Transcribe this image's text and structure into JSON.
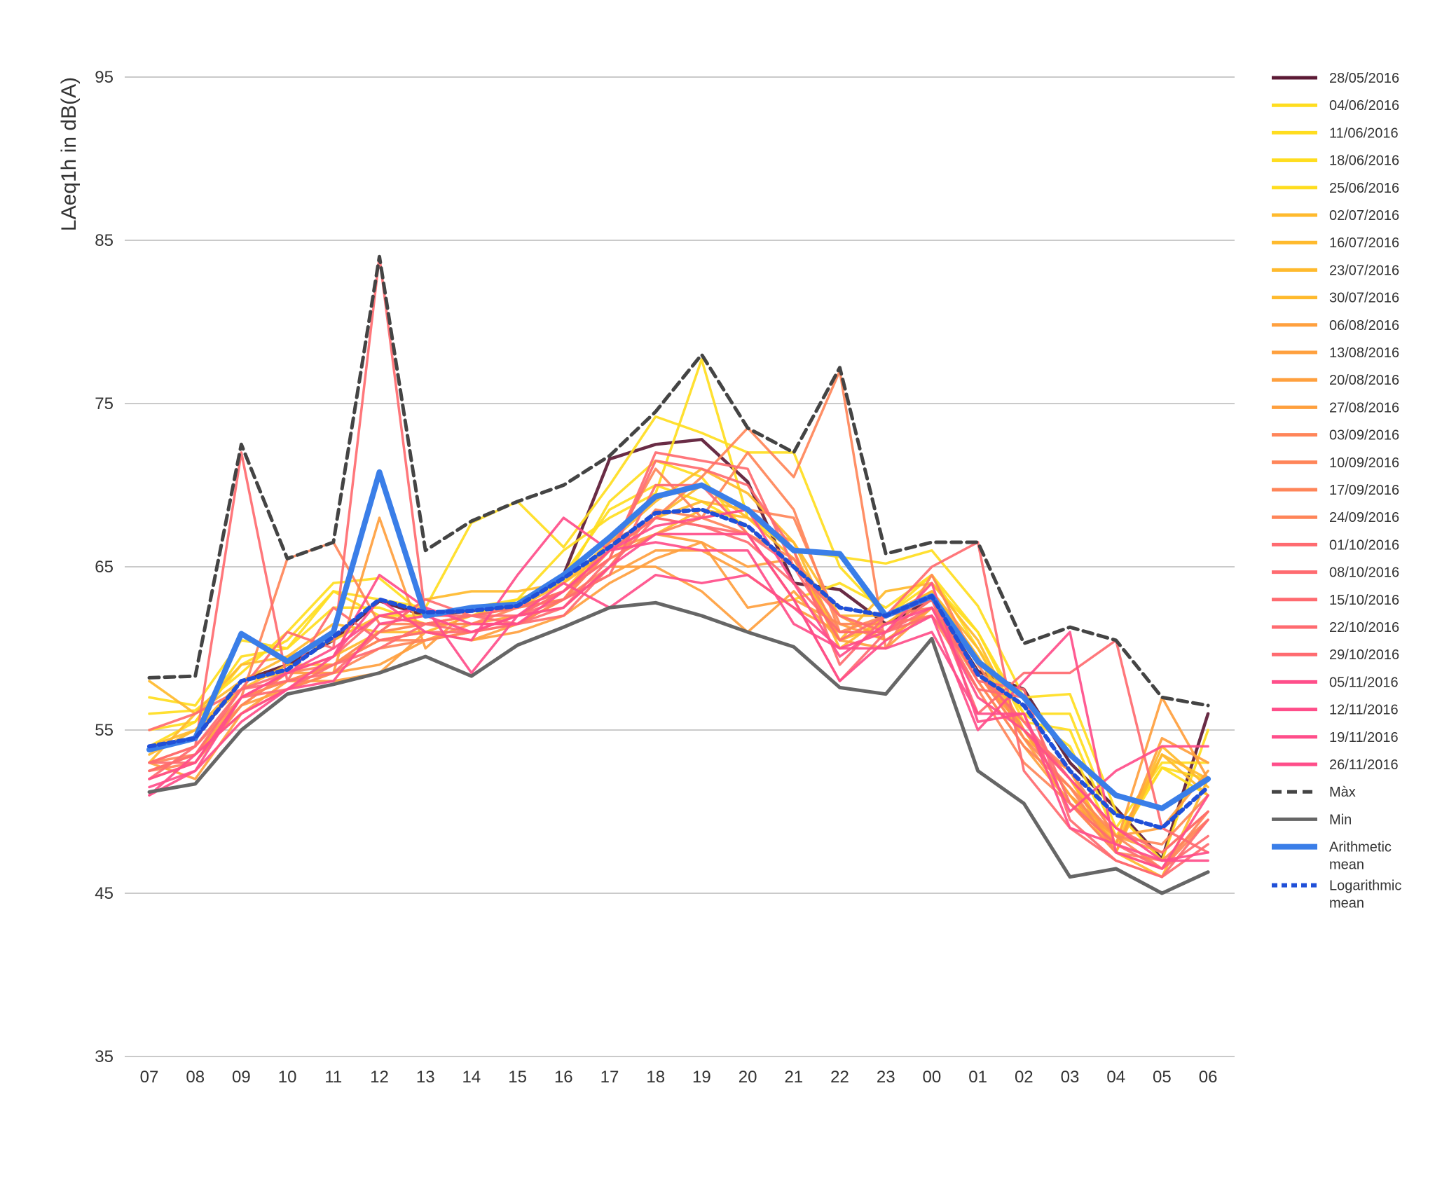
{
  "chart_data": {
    "type": "line",
    "title": "",
    "xlabel": "",
    "ylabel": "LAeq1h in  dB(A)",
    "ylim": [
      35,
      95
    ],
    "yticks": [
      "95",
      "85",
      "75",
      "65",
      "55",
      "45",
      "35"
    ],
    "categories": [
      "07",
      "08",
      "09",
      "10",
      "11",
      "12",
      "13",
      "14",
      "15",
      "16",
      "17",
      "18",
      "19",
      "20",
      "21",
      "22",
      "23",
      "00",
      "01",
      "02",
      "03",
      "04",
      "05",
      "06"
    ],
    "grid": "horizontal",
    "legend_position": "right",
    "series": [
      {
        "name": "28/05/2016",
        "color": "#5c1a35",
        "style": "solid",
        "values": [
          54.0,
          54.5,
          58.0,
          59.0,
          60.5,
          62.9,
          62.0,
          62.3,
          62.6,
          64.5,
          71.6,
          72.5,
          72.8,
          70.2,
          64.0,
          63.6,
          61.5,
          63.0,
          58.6,
          57.5,
          53.0,
          50.2,
          47.1,
          56.0
        ]
      },
      {
        "name": "04/06/2016",
        "color": "#ffdd1f",
        "style": "solid",
        "values": [
          56.0,
          56.2,
          58.5,
          61.0,
          64.0,
          64.3,
          62.0,
          62.5,
          63.0,
          66.0,
          68.0,
          69.5,
          77.7,
          68.0,
          66.0,
          65.6,
          65.2,
          66.0,
          62.6,
          57.0,
          57.2,
          50.0,
          47.0,
          55.0
        ]
      },
      {
        "name": "11/06/2016",
        "color": "#ffdd1f",
        "style": "solid",
        "values": [
          54.0,
          55.5,
          59.0,
          60.5,
          63.5,
          63.0,
          62.5,
          67.7,
          69.0,
          66.2,
          70.0,
          74.2,
          73.2,
          72.0,
          72.0,
          65.0,
          62.0,
          64.5,
          61.0,
          56.0,
          56.0,
          49.0,
          53.0,
          53.0
        ]
      },
      {
        "name": "18/06/2016",
        "color": "#ffdd1f",
        "style": "solid",
        "values": [
          57.0,
          56.5,
          60.5,
          60.0,
          62.5,
          62.5,
          61.5,
          62.0,
          63.0,
          64.0,
          69.0,
          71.5,
          70.5,
          67.0,
          63.0,
          64.0,
          62.5,
          64.5,
          60.0,
          56.0,
          54.0,
          48.0,
          52.7,
          52.0
        ]
      },
      {
        "name": "25/06/2016",
        "color": "#ffdd1f",
        "style": "solid",
        "values": [
          55.0,
          55.5,
          59.5,
          60.0,
          63.5,
          62.0,
          62.0,
          62.5,
          62.5,
          64.5,
          68.5,
          70.0,
          69.0,
          67.5,
          65.0,
          62.5,
          62.0,
          64.0,
          61.0,
          55.5,
          55.0,
          48.5,
          52.7,
          51.0
        ]
      },
      {
        "name": "02/07/2016",
        "color": "#ffba2d",
        "style": "solid",
        "values": [
          58.0,
          56.0,
          59.0,
          59.5,
          61.5,
          61.0,
          63.0,
          63.5,
          63.5,
          64.0,
          66.5,
          69.0,
          71.0,
          69.5,
          66.5,
          60.5,
          63.5,
          64.0,
          60.5,
          55.0,
          52.0,
          47.5,
          46.0,
          52.0
        ]
      },
      {
        "name": "16/07/2016",
        "color": "#ffba2d",
        "style": "solid",
        "values": [
          53.0,
          56.0,
          58.0,
          59.5,
          60.5,
          62.0,
          61.5,
          62.0,
          62.5,
          64.0,
          66.0,
          68.0,
          70.0,
          68.0,
          66.5,
          62.0,
          62.0,
          63.5,
          59.5,
          55.0,
          52.0,
          48.0,
          53.5,
          52.0
        ]
      },
      {
        "name": "23/07/2016",
        "color": "#ffba2d",
        "style": "solid",
        "values": [
          53.5,
          55.0,
          58.0,
          58.5,
          59.5,
          61.0,
          61.5,
          62.0,
          62.5,
          63.5,
          66.5,
          68.0,
          69.0,
          68.5,
          66.0,
          60.0,
          62.0,
          63.5,
          59.5,
          54.5,
          52.5,
          47.5,
          54.0,
          51.5
        ]
      },
      {
        "name": "30/07/2016",
        "color": "#ffba2d",
        "style": "solid",
        "values": [
          54.0,
          55.0,
          57.5,
          59.0,
          59.0,
          61.0,
          61.0,
          62.0,
          62.5,
          63.5,
          65.5,
          67.0,
          68.5,
          68.0,
          65.5,
          60.5,
          61.5,
          63.5,
          60.0,
          55.0,
          51.0,
          47.5,
          53.5,
          51.0
        ]
      },
      {
        "name": "06/08/2016",
        "color": "#ffa03e",
        "style": "solid",
        "values": [
          52.5,
          53.5,
          56.5,
          58.5,
          58.5,
          59.0,
          60.5,
          61.5,
          62.0,
          62.5,
          65.0,
          65.0,
          63.5,
          61.0,
          63.5,
          60.5,
          60.0,
          62.5,
          58.5,
          55.0,
          51.0,
          48.0,
          57.0,
          52.0
        ]
      },
      {
        "name": "13/08/2016",
        "color": "#ffa03e",
        "style": "solid",
        "values": [
          53.0,
          52.0,
          56.0,
          58.0,
          58.0,
          58.5,
          61.0,
          60.5,
          61.0,
          62.0,
          64.0,
          65.5,
          66.5,
          62.5,
          63.0,
          61.5,
          60.5,
          62.5,
          58.0,
          54.0,
          50.5,
          47.5,
          54.5,
          53.0
        ]
      },
      {
        "name": "20/08/2016",
        "color": "#ffa03e",
        "style": "solid",
        "values": [
          52.0,
          53.0,
          56.5,
          57.5,
          58.5,
          68.0,
          60.0,
          62.5,
          62.5,
          63.0,
          64.5,
          66.0,
          66.0,
          64.5,
          62.5,
          61.0,
          61.0,
          63.0,
          58.5,
          54.5,
          50.5,
          48.5,
          49.0,
          52.5
        ]
      },
      {
        "name": "27/08/2016",
        "color": "#ffa03e",
        "style": "solid",
        "values": [
          52.5,
          53.5,
          57.0,
          58.0,
          59.0,
          60.5,
          61.0,
          60.5,
          61.5,
          63.0,
          66.0,
          67.0,
          66.5,
          65.0,
          65.5,
          62.0,
          60.5,
          62.5,
          58.5,
          55.0,
          51.0,
          48.5,
          47.5,
          50.0
        ]
      },
      {
        "name": "03/09/2016",
        "color": "#ff8559",
        "style": "solid",
        "values": [
          53.0,
          54.0,
          57.0,
          65.5,
          66.5,
          61.5,
          61.5,
          61.5,
          61.5,
          63.0,
          66.5,
          68.0,
          70.5,
          73.5,
          70.5,
          77.0,
          60.0,
          64.5,
          59.0,
          55.0,
          52.5,
          48.5,
          46.5,
          49.5
        ]
      },
      {
        "name": "10/09/2016",
        "color": "#ff8559",
        "style": "solid",
        "values": [
          52.0,
          53.0,
          57.0,
          58.0,
          59.0,
          60.5,
          60.5,
          61.0,
          61.5,
          63.0,
          66.0,
          71.0,
          68.0,
          72.0,
          68.5,
          61.0,
          61.0,
          63.0,
          58.0,
          54.0,
          51.5,
          47.5,
          46.5,
          50.0
        ]
      },
      {
        "name": "17/09/2016",
        "color": "#ff8559",
        "style": "solid",
        "values": [
          53.0,
          53.5,
          56.0,
          57.5,
          58.5,
          60.0,
          60.5,
          61.0,
          62.0,
          63.5,
          65.5,
          67.0,
          68.0,
          67.0,
          65.5,
          61.0,
          62.0,
          62.5,
          58.5,
          54.5,
          51.5,
          48.5,
          48.0,
          51.0
        ]
      },
      {
        "name": "24/09/2016",
        "color": "#ff8559",
        "style": "solid",
        "values": [
          52.5,
          53.0,
          56.5,
          58.5,
          59.0,
          61.0,
          61.5,
          61.5,
          62.5,
          63.0,
          65.0,
          68.5,
          68.0,
          68.5,
          68.0,
          61.5,
          61.5,
          62.0,
          57.5,
          53.0,
          50.5,
          47.5,
          47.0,
          49.5
        ]
      },
      {
        "name": "01/10/2016",
        "color": "#ff6b70",
        "style": "solid",
        "values": [
          55.0,
          56.0,
          57.5,
          61.0,
          60.0,
          84.0,
          62.0,
          62.0,
          62.5,
          63.5,
          66.0,
          68.0,
          67.5,
          67.0,
          65.0,
          62.0,
          61.0,
          62.0,
          58.5,
          55.5,
          52.0,
          49.0,
          47.5,
          50.0
        ]
      },
      {
        "name": "08/10/2016",
        "color": "#ff6b70",
        "style": "solid",
        "values": [
          52.0,
          54.0,
          72.0,
          58.0,
          62.5,
          60.5,
          61.0,
          61.0,
          61.5,
          62.5,
          65.5,
          71.5,
          71.0,
          70.0,
          66.0,
          59.0,
          62.0,
          65.0,
          66.5,
          52.5,
          49.0,
          47.0,
          46.0,
          48.0
        ]
      },
      {
        "name": "15/10/2016",
        "color": "#ff6b70",
        "style": "solid",
        "values": [
          53.0,
          54.0,
          57.5,
          58.0,
          58.5,
          61.0,
          63.0,
          62.0,
          61.5,
          62.0,
          65.0,
          68.0,
          67.5,
          66.5,
          64.0,
          61.0,
          61.0,
          63.0,
          56.0,
          58.5,
          58.5,
          60.5,
          49.0,
          47.5
        ]
      },
      {
        "name": "22/10/2016",
        "color": "#ff6b70",
        "style": "solid",
        "values": [
          52.5,
          53.5,
          57.5,
          58.5,
          59.5,
          62.0,
          61.5,
          62.0,
          62.0,
          63.5,
          65.5,
          72.0,
          71.5,
          71.0,
          65.0,
          60.5,
          62.0,
          63.0,
          58.0,
          57.5,
          49.5,
          47.0,
          46.0,
          49.5
        ]
      },
      {
        "name": "29/10/2016",
        "color": "#ff6b70",
        "style": "solid",
        "values": [
          53.0,
          53.0,
          57.0,
          57.5,
          59.0,
          60.0,
          61.5,
          61.0,
          62.0,
          63.0,
          64.5,
          70.0,
          70.0,
          67.0,
          63.0,
          58.0,
          61.0,
          62.5,
          57.5,
          57.0,
          50.5,
          48.0,
          46.5,
          48.5
        ]
      },
      {
        "name": "05/11/2016",
        "color": "#ff4e8a",
        "style": "solid",
        "values": [
          51.0,
          53.5,
          56.0,
          57.5,
          58.0,
          61.5,
          62.0,
          61.0,
          62.0,
          62.5,
          65.0,
          67.0,
          67.0,
          67.0,
          63.0,
          58.0,
          60.5,
          62.0,
          55.0,
          58.0,
          61.0,
          47.5,
          46.5,
          51.0
        ]
      },
      {
        "name": "12/11/2016",
        "color": "#ff4e8a",
        "style": "solid",
        "values": [
          51.5,
          52.5,
          57.0,
          58.5,
          59.5,
          64.5,
          62.5,
          58.5,
          62.0,
          64.0,
          62.5,
          64.5,
          64.0,
          64.5,
          62.5,
          60.0,
          60.0,
          61.0,
          56.0,
          56.0,
          49.0,
          48.0,
          47.0,
          47.5
        ]
      },
      {
        "name": "19/11/2016",
        "color": "#ff4e8a",
        "style": "solid",
        "values": [
          52.0,
          53.0,
          57.0,
          58.5,
          60.0,
          62.0,
          62.5,
          61.5,
          61.5,
          63.5,
          66.0,
          67.5,
          68.0,
          68.5,
          64.0,
          59.5,
          61.5,
          62.5,
          57.0,
          55.0,
          52.0,
          49.0,
          47.0,
          47.0
        ]
      },
      {
        "name": "26/11/2016",
        "color": "#ff4e8a",
        "style": "solid",
        "values": [
          51.0,
          52.5,
          55.5,
          57.5,
          59.5,
          63.0,
          61.0,
          60.5,
          64.5,
          68.0,
          66.0,
          66.5,
          66.0,
          66.0,
          61.5,
          60.0,
          61.0,
          64.0,
          55.5,
          56.0,
          50.0,
          52.5,
          54.0,
          54.0
        ]
      },
      {
        "name": "Màx",
        "color": "#444444",
        "style": "dashed",
        "values": [
          58.2,
          58.3,
          72.5,
          65.5,
          66.5,
          84.0,
          66.0,
          67.8,
          69.0,
          70.0,
          71.8,
          74.5,
          78.0,
          73.5,
          72.0,
          77.2,
          65.8,
          66.5,
          66.5,
          60.3,
          61.3,
          60.5,
          57.0,
          56.5
        ]
      },
      {
        "name": "Min",
        "color": "#666666",
        "style": "solid",
        "values": [
          51.2,
          51.7,
          55.0,
          57.2,
          57.8,
          58.5,
          59.5,
          58.3,
          60.2,
          61.3,
          62.5,
          62.8,
          62.0,
          61.0,
          60.1,
          57.6,
          57.2,
          60.6,
          52.5,
          50.5,
          46.0,
          46.5,
          45.0,
          46.3
        ]
      },
      {
        "name": "Arithmetic mean",
        "color": "#3a7ee8",
        "style": "solid",
        "values": [
          53.8,
          54.5,
          60.9,
          59.2,
          61.0,
          70.8,
          62.0,
          62.5,
          62.7,
          64.5,
          66.8,
          69.3,
          70.0,
          68.5,
          66.0,
          65.8,
          62.0,
          63.2,
          59.2,
          57.0,
          53.5,
          51.0,
          50.2,
          52.0
        ]
      },
      {
        "name": "Logarithmic mean",
        "color": "#2050d8",
        "style": "dotted",
        "values": [
          54.0,
          54.5,
          58.0,
          58.7,
          60.7,
          63.0,
          62.2,
          62.3,
          62.6,
          64.3,
          66.2,
          68.3,
          68.5,
          67.5,
          65.0,
          62.5,
          62.0,
          63.2,
          58.4,
          56.5,
          52.5,
          49.8,
          49.0,
          51.5
        ]
      }
    ]
  }
}
